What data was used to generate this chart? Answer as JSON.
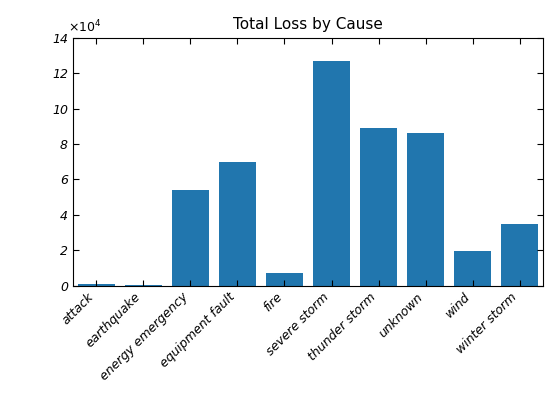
{
  "categories": [
    "attack",
    "earthquake",
    "energy emergency",
    "equipment fault",
    "fire",
    "severe storm",
    "thunder storm",
    "unknown",
    "wind",
    "winter storm"
  ],
  "values": [
    1100,
    500,
    54000,
    70000,
    7000,
    127000,
    89000,
    86000,
    19500,
    35000
  ],
  "bar_color": "#2176ae",
  "title": "Total Loss by Cause",
  "ylim": [
    0,
    140000
  ],
  "yticks": [
    0,
    20000,
    40000,
    60000,
    80000,
    100000,
    120000,
    140000
  ],
  "ytick_labels": [
    "0",
    "2",
    "4",
    "6",
    "8",
    "10",
    "12",
    "14"
  ],
  "background_color": "#ffffff"
}
